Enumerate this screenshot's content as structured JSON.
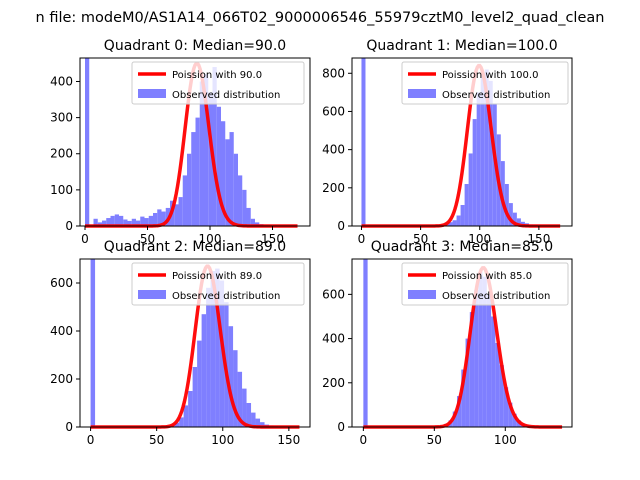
{
  "figure": {
    "suptitle": "n file: modeM0/AS1A14_066T02_9000006546_55979cztM0_level2_quad_clean"
  },
  "colors": {
    "poisson_line": "#ff0000",
    "histogram": "#7f7fff"
  },
  "chart_data": [
    {
      "type": "bar",
      "title": "Quadrant 0: Median=90.0",
      "median": 90.0,
      "legend": [
        "Poission with 90.0",
        "Observed distribution"
      ],
      "legend_loc": "upper right",
      "xlim": [
        -4,
        180
      ],
      "ylim": [
        0,
        465
      ],
      "xticks": [
        0,
        50,
        100,
        150
      ],
      "xticklabels": [
        "0",
        "50",
        "100",
        "150"
      ],
      "yticks": [
        0,
        100,
        200,
        300,
        400
      ],
      "yticklabels": [
        "0",
        "100",
        "200",
        "300",
        "400"
      ],
      "zero_bin_height": 465,
      "hist_start": 0,
      "bin_width": 3.4,
      "counts": [
        0,
        0,
        20,
        10,
        15,
        22,
        28,
        32,
        28,
        18,
        14,
        20,
        15,
        26,
        22,
        28,
        36,
        46,
        40,
        50,
        70,
        60,
        80,
        140,
        200,
        260,
        300,
        400,
        420,
        370,
        440,
        330,
        290,
        240,
        260,
        200,
        140,
        100,
        50,
        20,
        10,
        5,
        2,
        0
      ],
      "poisson_lambda": 90.0,
      "poisson_peak": 450,
      "poisson_x": [
        0,
        170
      ]
    },
    {
      "type": "bar",
      "title": "Quadrant 1: Median=100.0",
      "median": 100.0,
      "legend": [
        "Poission with 100.0",
        "Observed distribution"
      ],
      "legend_loc": "upper right",
      "xlim": [
        -8,
        178
      ],
      "ylim": [
        0,
        880
      ],
      "xticks": [
        0,
        50,
        100,
        150
      ],
      "xticklabels": [
        "0",
        "50",
        "100",
        "150"
      ],
      "yticks": [
        0,
        200,
        400,
        600,
        800
      ],
      "yticklabels": [
        "0",
        "200",
        "400",
        "600",
        "800"
      ],
      "zero_bin_height": 880,
      "hist_start": 60,
      "bin_width": 3.4,
      "counts": [
        4,
        6,
        10,
        14,
        20,
        30,
        55,
        110,
        220,
        380,
        560,
        700,
        800,
        820,
        760,
        640,
        480,
        340,
        220,
        120,
        70,
        40,
        22,
        14,
        8,
        6,
        4,
        2
      ],
      "poisson_lambda": 100.0,
      "poisson_peak": 840,
      "poisson_x": [
        0,
        168
      ]
    },
    {
      "type": "bar",
      "title": "Quadrant 2: Median=89.0",
      "median": 89.0,
      "legend": [
        "Poission with 89.0",
        "Observed distribution"
      ],
      "legend_loc": "upper right",
      "xlim": [
        -8,
        166
      ],
      "ylim": [
        0,
        700
      ],
      "xticks": [
        0,
        50,
        100,
        150
      ],
      "xticklabels": [
        "0",
        "50",
        "100",
        "150"
      ],
      "yticks": [
        0,
        200,
        400,
        600
      ],
      "yticklabels": [
        "0",
        "200",
        "400",
        "600"
      ],
      "zero_bin_height": 700,
      "hist_start": 50,
      "bin_width": 3.4,
      "counts": [
        2,
        4,
        6,
        10,
        18,
        40,
        90,
        150,
        250,
        360,
        470,
        580,
        650,
        660,
        610,
        520,
        420,
        320,
        230,
        160,
        100,
        60,
        35,
        20,
        10,
        6,
        4,
        2
      ],
      "poisson_lambda": 89.0,
      "poisson_peak": 670,
      "poisson_x": [
        0,
        158
      ]
    },
    {
      "type": "bar",
      "title": "Quadrant 3: Median=85.0",
      "median": 85.0,
      "legend": [
        "Poission with 85.0",
        "Observed distribution"
      ],
      "legend_loc": "upper right",
      "xlim": [
        -8,
        147
      ],
      "ylim": [
        0,
        760
      ],
      "xticks": [
        0,
        50,
        100
      ],
      "xticklabels": [
        "0",
        "50",
        "100"
      ],
      "yticks": [
        0,
        200,
        400,
        600
      ],
      "yticklabels": [
        "0",
        "200",
        "400",
        "600"
      ],
      "zero_bin_height": 760,
      "hist_start": 48,
      "bin_width": 3.0,
      "counts": [
        2,
        4,
        8,
        14,
        30,
        70,
        140,
        260,
        400,
        520,
        620,
        700,
        680,
        600,
        500,
        380,
        280,
        180,
        110,
        60,
        30,
        16,
        8,
        4,
        2
      ],
      "poisson_lambda": 85.0,
      "poisson_peak": 720,
      "poisson_x": [
        0,
        140
      ]
    }
  ]
}
